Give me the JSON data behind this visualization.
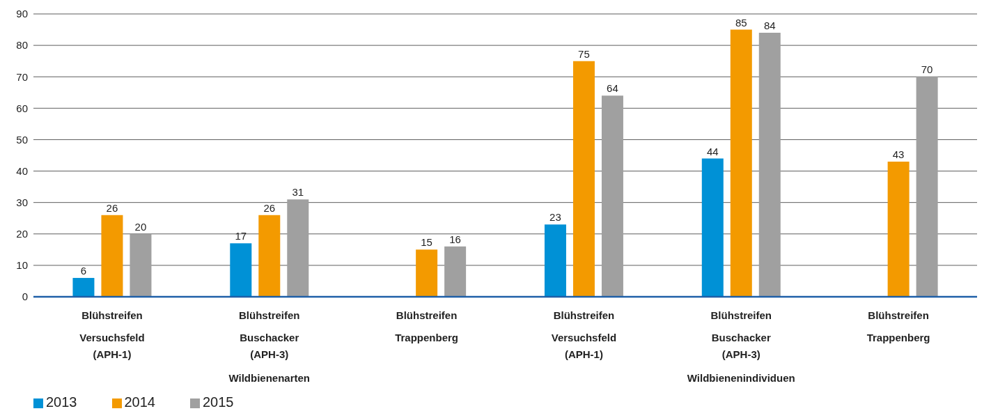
{
  "chart_data": {
    "type": "bar",
    "categories": [
      "Blühstreifen\nVersuchsfeld\n(APH-1)",
      "Blühstreifen\nBuschacker\n(APH-3)",
      "Blühstreifen\nTrappenberg",
      "Blühstreifen\nVersuchsfeld\n(APH-1)",
      "Blühstreifen\nBuschacker\n(APH-3)",
      "Blühstreifen\nTrappenberg"
    ],
    "series": [
      {
        "name": "2013",
        "color": "#0091d6",
        "values": [
          6,
          17,
          null,
          23,
          44,
          null
        ]
      },
      {
        "name": "2014",
        "color": "#f39a00",
        "values": [
          26,
          26,
          15,
          75,
          85,
          43
        ]
      },
      {
        "name": "2015",
        "color": "#a0a0a0",
        "values": [
          20,
          31,
          16,
          64,
          84,
          70
        ]
      }
    ],
    "ylim": [
      0,
      90
    ],
    "yticks": [
      0,
      10,
      20,
      30,
      40,
      50,
      60,
      70,
      80,
      90
    ],
    "annotations": [
      "Wildbienenarten",
      "Wildbienenindividuen"
    ],
    "grid": "y",
    "legend": "bottom left",
    "data_labels": true
  }
}
